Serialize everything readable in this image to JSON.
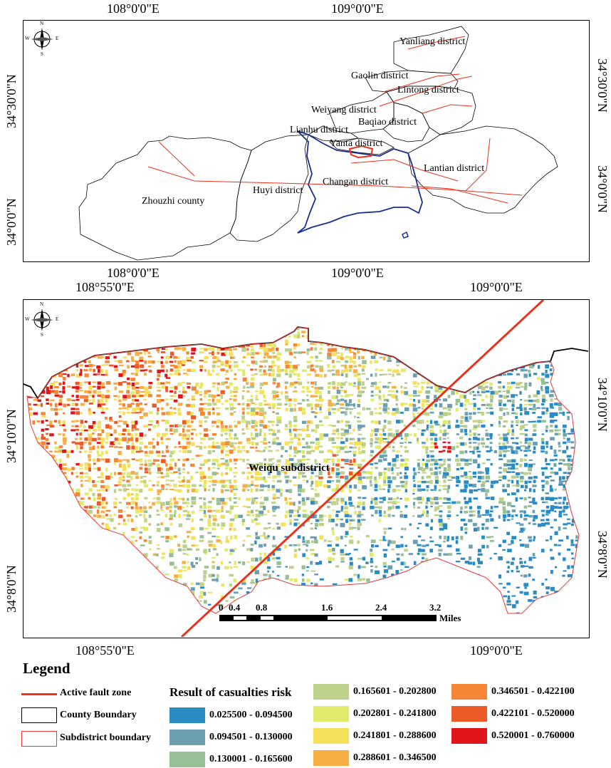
{
  "top_map": {
    "top_lon_labels": [
      "108°0'0\"E",
      "109°0'0\"E"
    ],
    "bottom_lon_labels": [
      "108°0'0\"E",
      "109°0'0\"E"
    ],
    "left_lat_labels": [
      "34°30'0\"N",
      "34°0'0\"N"
    ],
    "right_lat_labels": [
      "34°30'0\"N",
      "34°0'0\"N"
    ],
    "districts": [
      "Yanliang district",
      "Gaolin district",
      "Lintong district",
      "Weiyang district",
      "Baqiao district",
      "Lianhu district",
      "Yanta district",
      "Lantian district",
      "Changan district",
      "Huyi district",
      "Zhouzhi county"
    ]
  },
  "bottom_map": {
    "top_lon_labels": [
      "108°55'0\"E",
      "109°0'0\"E"
    ],
    "bottom_lon_labels": [
      "108°55'0\"E",
      "109°0'0\"E"
    ],
    "left_lat_labels": [
      "34°10'0\"N",
      "34°8'0\"N"
    ],
    "right_lat_labels": [
      "34°10'0\"N",
      "34°8'0\"N"
    ],
    "subdistrict_label": "Weiqu subdistrict",
    "scale_bar": {
      "ticks": [
        "0",
        "0.4",
        "0.8",
        "1.6",
        "2.4",
        "3.2"
      ],
      "unit": "Miles"
    }
  },
  "compass": {
    "n": "N",
    "s": "S",
    "e": "E",
    "w": "W"
  },
  "legend": {
    "title": "Legend",
    "fault_label": "Active fault zone",
    "county_label": "County Boundary",
    "subdistrict_label": "Subdistrict boundary",
    "risk_title": "Result of casualties risk",
    "risk_classes": [
      {
        "range": "0.025500 - 0.094500",
        "color": "#2b8cc4"
      },
      {
        "range": "0.094501 - 0.130000",
        "color": "#6c9fb0"
      },
      {
        "range": "0.130001 - 0.165600",
        "color": "#98bf98"
      },
      {
        "range": "0.165601 - 0.202800",
        "color": "#bdd18b"
      },
      {
        "range": "0.202801 - 0.241800",
        "color": "#e1ea6a"
      },
      {
        "range": "0.241801 - 0.288600",
        "color": "#f6df59"
      },
      {
        "range": "0.288601 - 0.346500",
        "color": "#f7ae45"
      },
      {
        "range": "0.346501 - 0.422100",
        "color": "#f48636"
      },
      {
        "range": "0.422101 - 0.520000",
        "color": "#ec5a27"
      },
      {
        "range": "0.520001 - 0.760000",
        "color": "#e0151a"
      }
    ],
    "colors": {
      "fault": "#e8321c",
      "county": "#000000",
      "subdistrict": "#e8383a"
    }
  }
}
